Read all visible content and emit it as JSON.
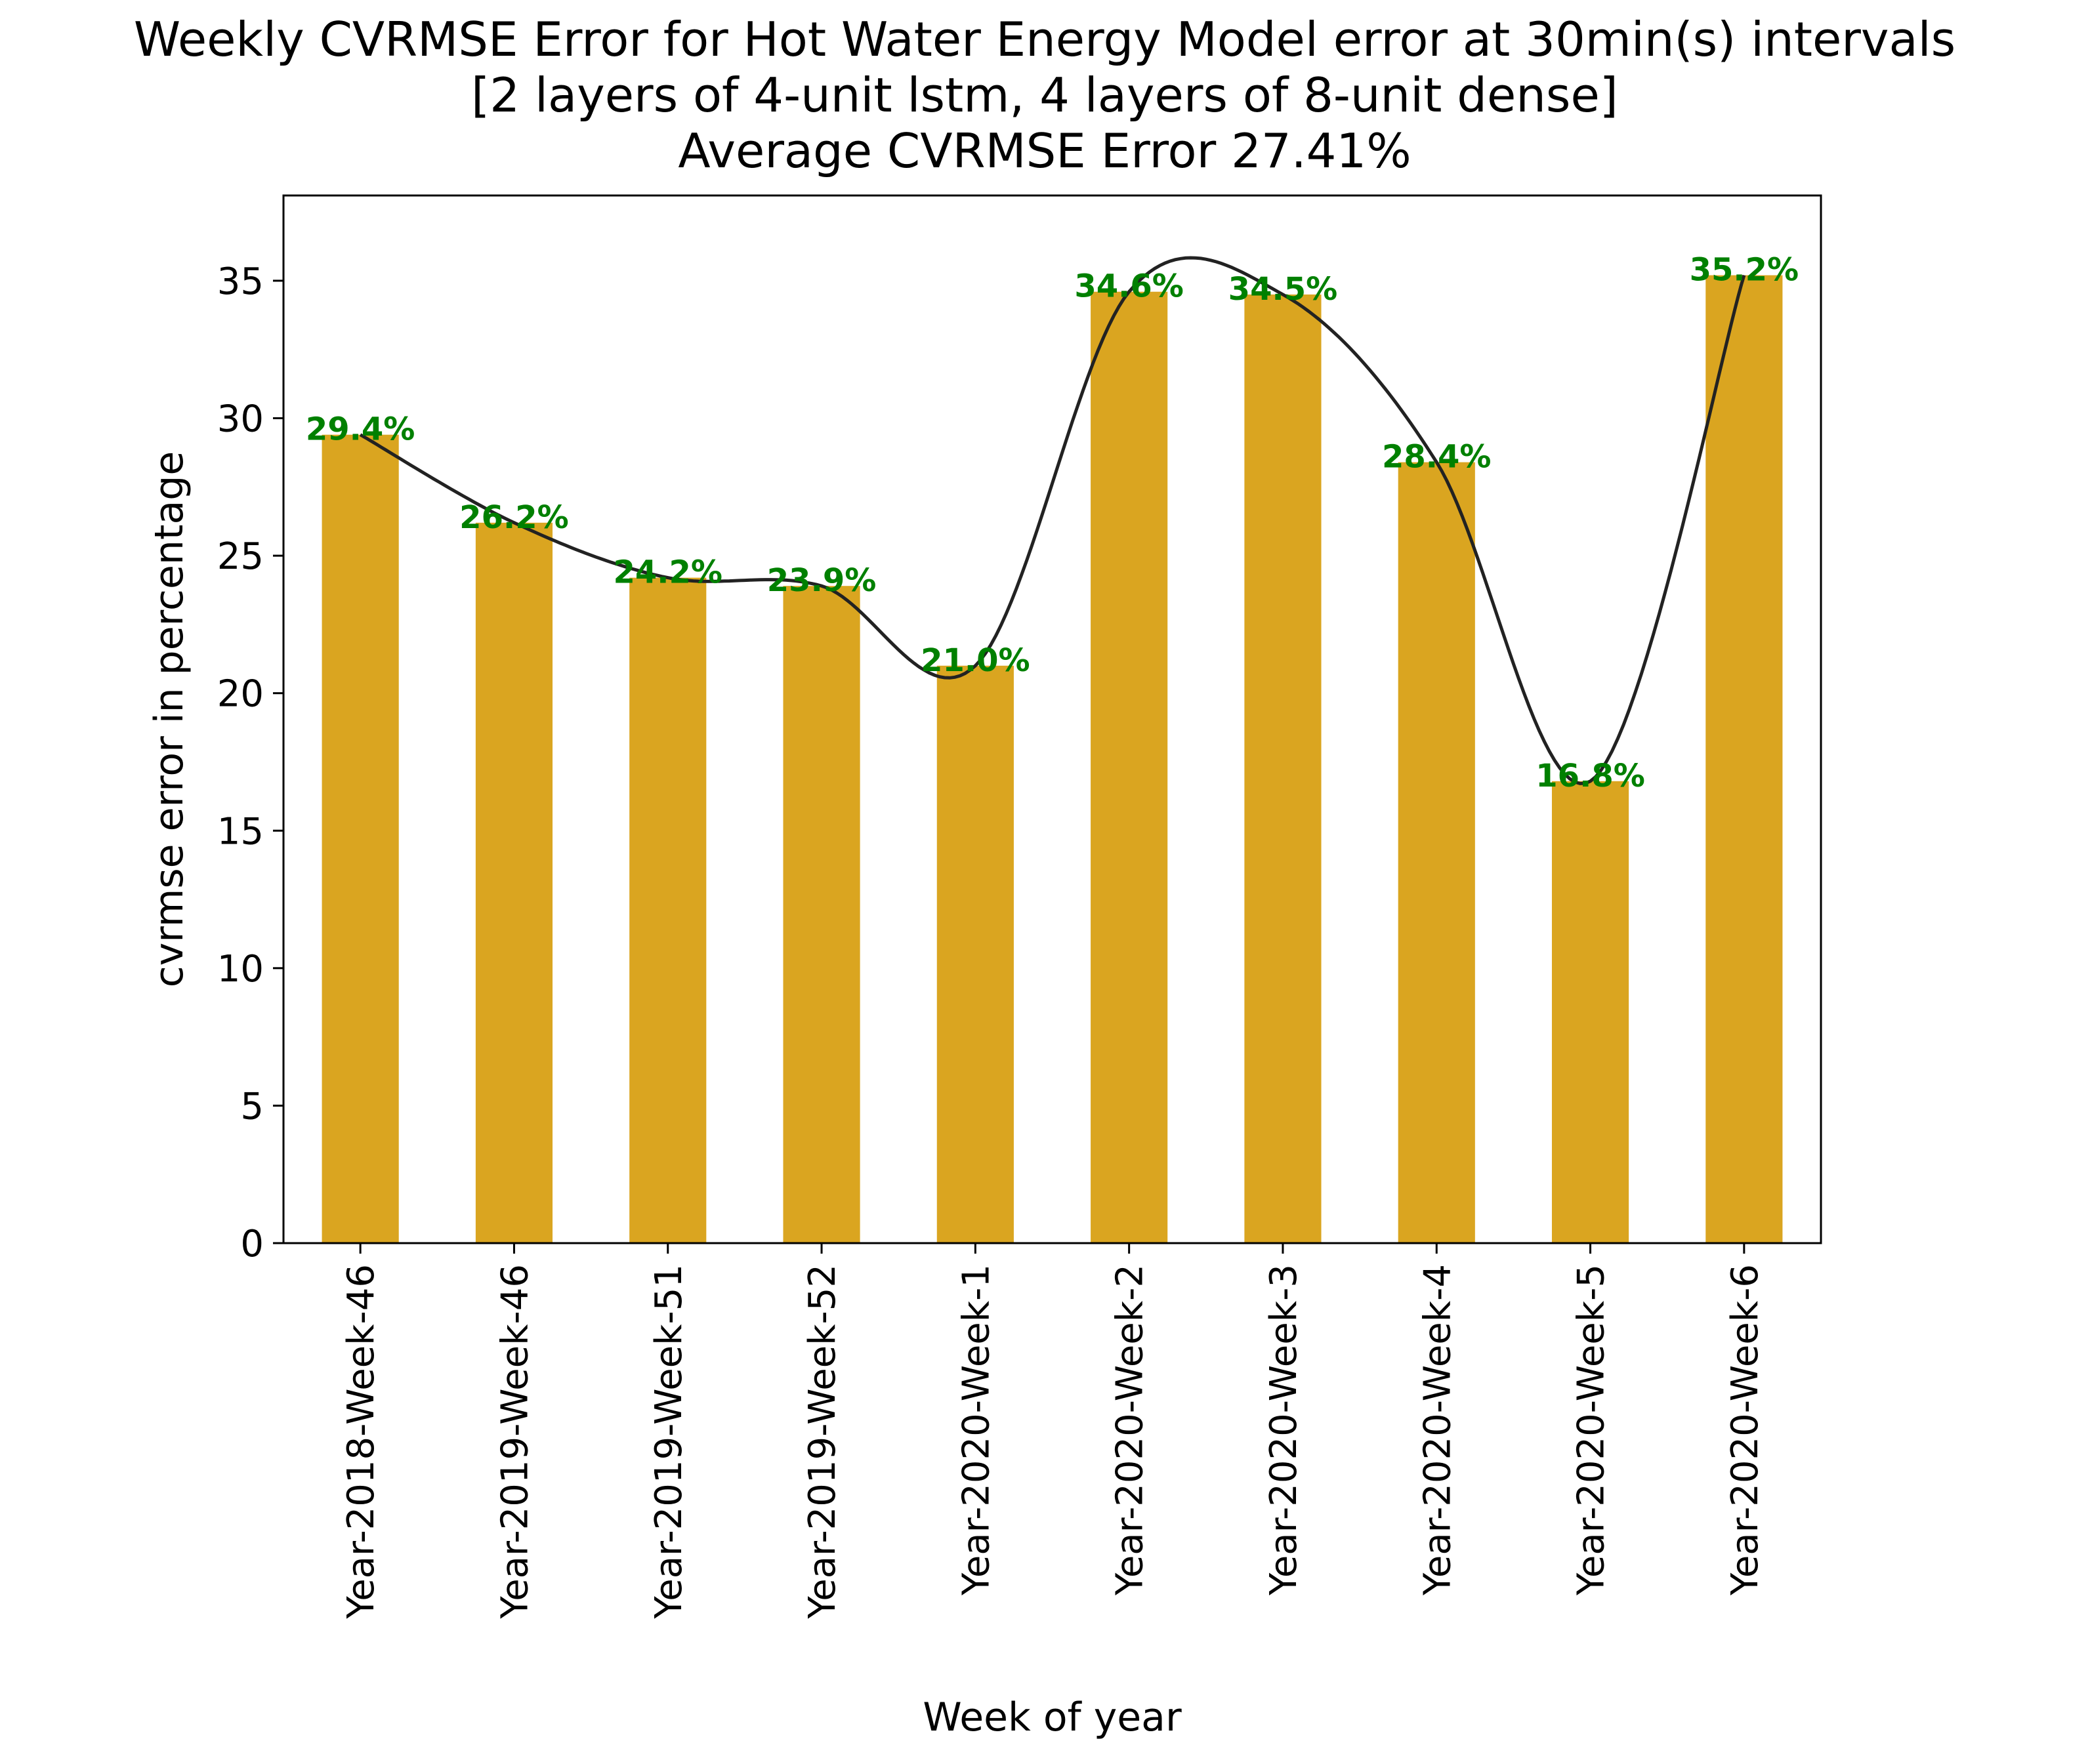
{
  "chart_data": {
    "type": "bar",
    "title_lines": [
      "Weekly CVRMSE Error for Hot Water Energy Model error at 30min(s) intervals",
      "[2 layers of 4-unit lstm, 4 layers of 8-unit dense]",
      "Average CVRMSE Error 27.41%"
    ],
    "xlabel": "Week of year",
    "ylabel": "cvrmse error in percentage",
    "categories": [
      "Year-2018-Week-46",
      "Year-2019-Week-46",
      "Year-2019-Week-51",
      "Year-2019-Week-52",
      "Year-2020-Week-1",
      "Year-2020-Week-2",
      "Year-2020-Week-3",
      "Year-2020-Week-4",
      "Year-2020-Week-5",
      "Year-2020-Week-6"
    ],
    "values": [
      29.4,
      26.2,
      24.2,
      23.9,
      21.0,
      34.6,
      34.5,
      28.4,
      16.8,
      35.2
    ],
    "data_labels": [
      "29.4%",
      "26.2%",
      "24.2%",
      "23.9%",
      "21.0%",
      "34.6%",
      "34.5%",
      "28.4%",
      "16.8%",
      "35.2%"
    ],
    "yticks": [
      0,
      5,
      10,
      15,
      20,
      25,
      30,
      35
    ],
    "ylim": [
      0,
      38.1
    ],
    "bar_color": "#DAA520",
    "label_color": "#008000",
    "curve_color": "#222222",
    "smooth_curve": true,
    "grid": false,
    "legend": "none"
  }
}
